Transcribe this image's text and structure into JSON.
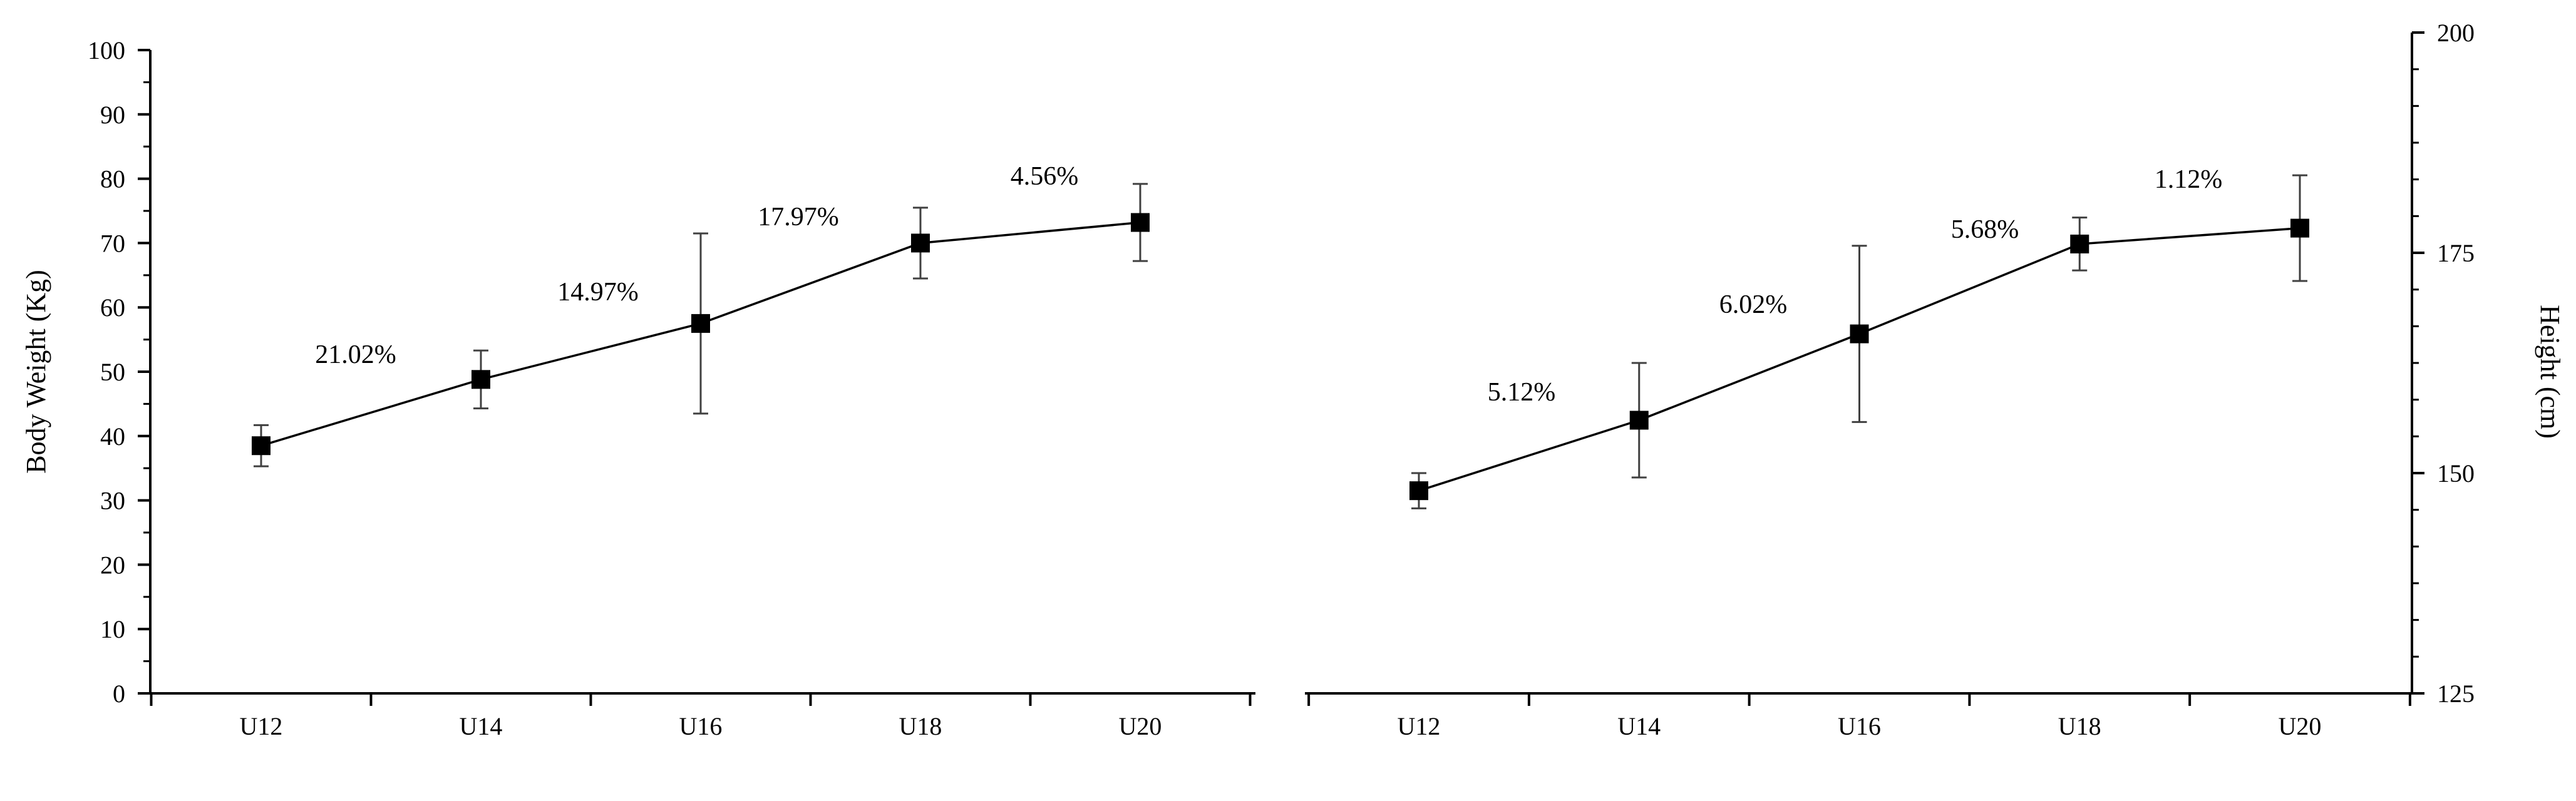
{
  "chart_data": [
    {
      "type": "line",
      "categories": [
        "U12",
        "U14",
        "U16",
        "U18",
        "U20"
      ],
      "ylabel": "Body Weight (Kg)",
      "ylim": [
        0,
        100
      ],
      "yticks": [
        "0",
        "10",
        "20",
        "30",
        "40",
        "50",
        "60",
        "70",
        "80",
        "90",
        "100"
      ],
      "y_axis_side": "left",
      "series": [
        {
          "values": [
            38.5,
            48.8,
            57.5,
            70.0,
            73.2
          ],
          "error": [
            3.2,
            4.5,
            14.0,
            5.5,
            6.0
          ]
        }
      ],
      "annotations": [
        "21.02%",
        "14.97%",
        "17.97%",
        "4.56%"
      ],
      "grid": false,
      "legend": "none"
    },
    {
      "type": "line",
      "categories": [
        "U12",
        "U14",
        "U16",
        "U18",
        "U20"
      ],
      "ylabel": "Height (cm)",
      "ylim": [
        125,
        200
      ],
      "yticks": [
        "125",
        "150",
        "175",
        "200"
      ],
      "y_axis_side": "right",
      "series": [
        {
          "values": [
            148.0,
            156.0,
            165.8,
            176.0,
            177.8
          ],
          "error": [
            2.0,
            6.5,
            10.0,
            3.0,
            6.0
          ]
        }
      ],
      "annotations": [
        "5.12%",
        "6.02%",
        "5.68%",
        "1.12%"
      ],
      "grid": false,
      "legend": "none"
    }
  ]
}
